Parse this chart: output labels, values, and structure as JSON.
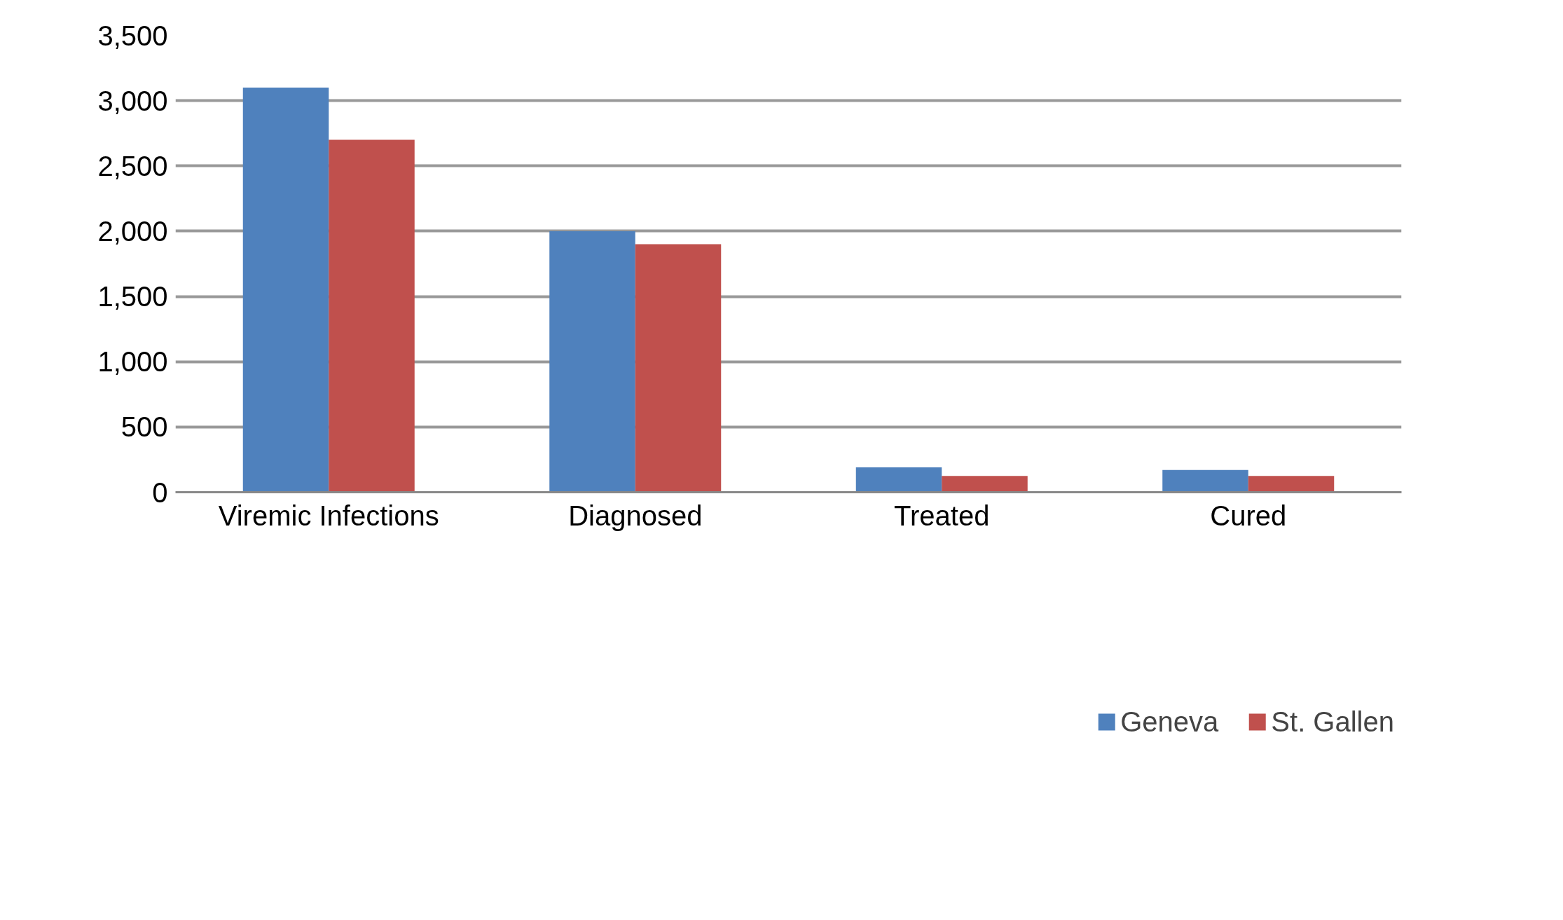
{
  "chart_data": {
    "type": "bar",
    "categories": [
      "Viremic Infections",
      "Diagnosed",
      "Treated",
      "Cured"
    ],
    "series": [
      {
        "name": "Geneva",
        "color": "#4f81bd",
        "values": [
          3100,
          2000,
          190,
          170
        ]
      },
      {
        "name": "St. Gallen",
        "color": "#c0504d",
        "values": [
          2700,
          1900,
          125,
          125
        ]
      }
    ],
    "ylim": [
      0,
      3500
    ],
    "yticks": [
      {
        "value": 0,
        "label": "0"
      },
      {
        "value": 500,
        "label": "500"
      },
      {
        "value": 1000,
        "label": "1,000"
      },
      {
        "value": 1500,
        "label": "1,500"
      },
      {
        "value": 2000,
        "label": "2,000"
      },
      {
        "value": 2500,
        "label": "2,500"
      },
      {
        "value": 3000,
        "label": "3,000"
      },
      {
        "value": 3500,
        "label": "3,500"
      }
    ],
    "grid": "y",
    "legend": "bottom"
  }
}
